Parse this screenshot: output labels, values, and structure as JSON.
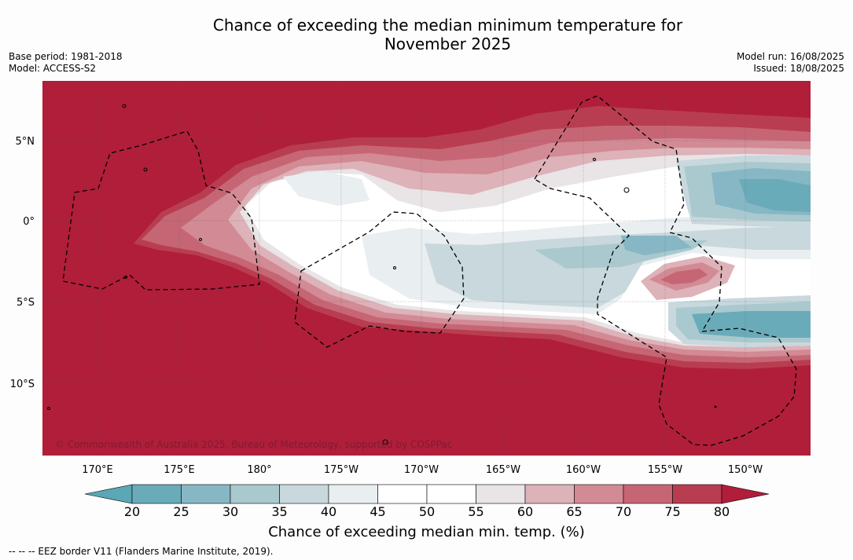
{
  "title_line1": "Chance of exceeding the median minimum temperature for",
  "title_line2": "November 2025",
  "meta_left": {
    "base_period": "Base period: 1981-2018",
    "model": "Model: ACCESS-S2"
  },
  "meta_right": {
    "model_run": "Model run: 16/08/2025",
    "issued": "Issued: 18/08/2025"
  },
  "map": {
    "lat_labels": [
      "5°N",
      "0°",
      "5°S",
      "10°S"
    ],
    "lon_labels": [
      "170°E",
      "175°E",
      "180°",
      "175°W",
      "170°W",
      "165°W",
      "160°W",
      "155°W",
      "150°W"
    ],
    "copyright": "© Commonwealth of Australia 2025, Bureau of Meteorology, supported by COSPPac",
    "border_legend": "--  --  -- EEZ border V11 (Flanders Marine Institute, 2019)."
  },
  "colorbar": {
    "title": "Chance of exceeding median min. temp. (%)",
    "tick_labels": [
      "20",
      "25",
      "30",
      "35",
      "40",
      "45",
      "50",
      "55",
      "60",
      "65",
      "70",
      "75",
      "80"
    ],
    "colors": [
      "#5aa7b5",
      "#6aabba",
      "#87b7c4",
      "#a9c9cf",
      "#c8d8dd",
      "#e9eef0",
      "#ffffff",
      "#ffffff",
      "#e9e4e6",
      "#ddb2b8",
      "#d28a94",
      "#c66675",
      "#b93d50",
      "#b01e3a"
    ]
  }
}
